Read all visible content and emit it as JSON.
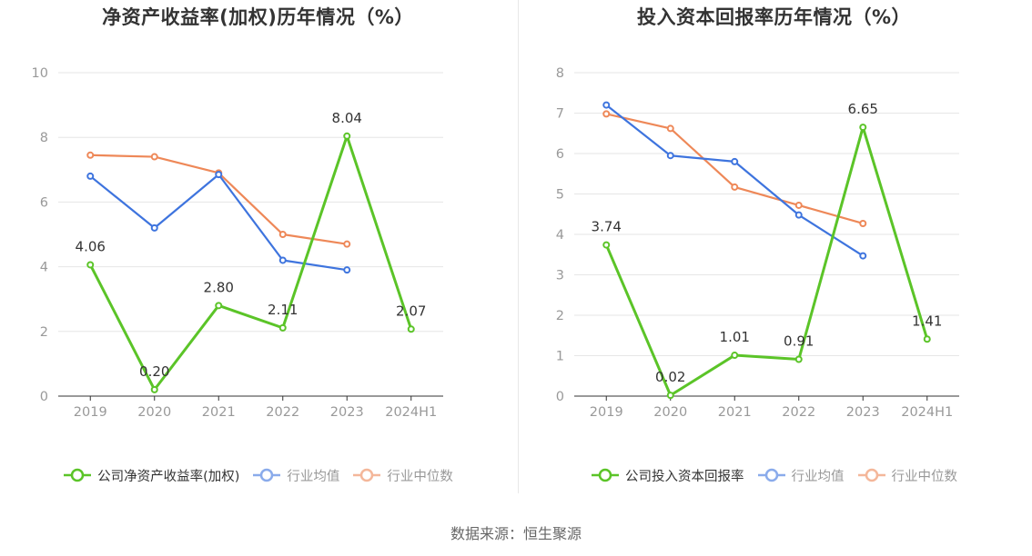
{
  "source": "数据来源：恒生聚源",
  "colors": {
    "company": "#5bc428",
    "industry_avg": "#3e74de",
    "industry_median": "#ee8858",
    "grid": "#e6e6e6",
    "axis": "#333333",
    "tick": "#999999",
    "label": "#333333"
  },
  "chart_data": [
    {
      "type": "line",
      "title": "净资产收益率(加权)历年情况（%）",
      "categories": [
        "2019",
        "2020",
        "2021",
        "2022",
        "2023",
        "2024H1"
      ],
      "ylim": [
        0,
        10
      ],
      "yticks": [
        0,
        2,
        4,
        6,
        8,
        10
      ],
      "grid": true,
      "legend_position": "bottom-center",
      "series": [
        {
          "key": "company",
          "name": "公司净资产收益率(加权)",
          "values": [
            4.06,
            0.2,
            2.8,
            2.11,
            8.04,
            2.07
          ],
          "labels": [
            "4.06",
            "0.20",
            "2.80",
            "2.11",
            "8.04",
            "2.07"
          ]
        },
        {
          "key": "industry_avg",
          "name": "行业均值",
          "values": [
            6.8,
            5.2,
            6.85,
            4.2,
            3.9,
            null
          ]
        },
        {
          "key": "industry_median",
          "name": "行业中位数",
          "values": [
            7.45,
            7.4,
            6.9,
            5.0,
            4.7,
            null
          ]
        }
      ]
    },
    {
      "type": "line",
      "title": "投入资本回报率历年情况（%）",
      "categories": [
        "2019",
        "2020",
        "2021",
        "2022",
        "2023",
        "2024H1"
      ],
      "ylim": [
        0,
        8
      ],
      "yticks": [
        0,
        1,
        2,
        3,
        4,
        5,
        6,
        7,
        8
      ],
      "grid": true,
      "legend_position": "bottom-center",
      "series": [
        {
          "key": "company",
          "name": "公司投入资本回报率",
          "values": [
            3.74,
            0.02,
            1.01,
            0.91,
            6.65,
            1.41
          ],
          "labels": [
            "3.74",
            "0.02",
            "1.01",
            "0.91",
            "6.65",
            "1.41"
          ]
        },
        {
          "key": "industry_avg",
          "name": "行业均值",
          "values": [
            7.2,
            5.95,
            5.8,
            4.48,
            3.47,
            null
          ]
        },
        {
          "key": "industry_median",
          "name": "行业中位数",
          "values": [
            6.98,
            6.62,
            5.17,
            4.72,
            4.27,
            null
          ]
        }
      ]
    }
  ]
}
